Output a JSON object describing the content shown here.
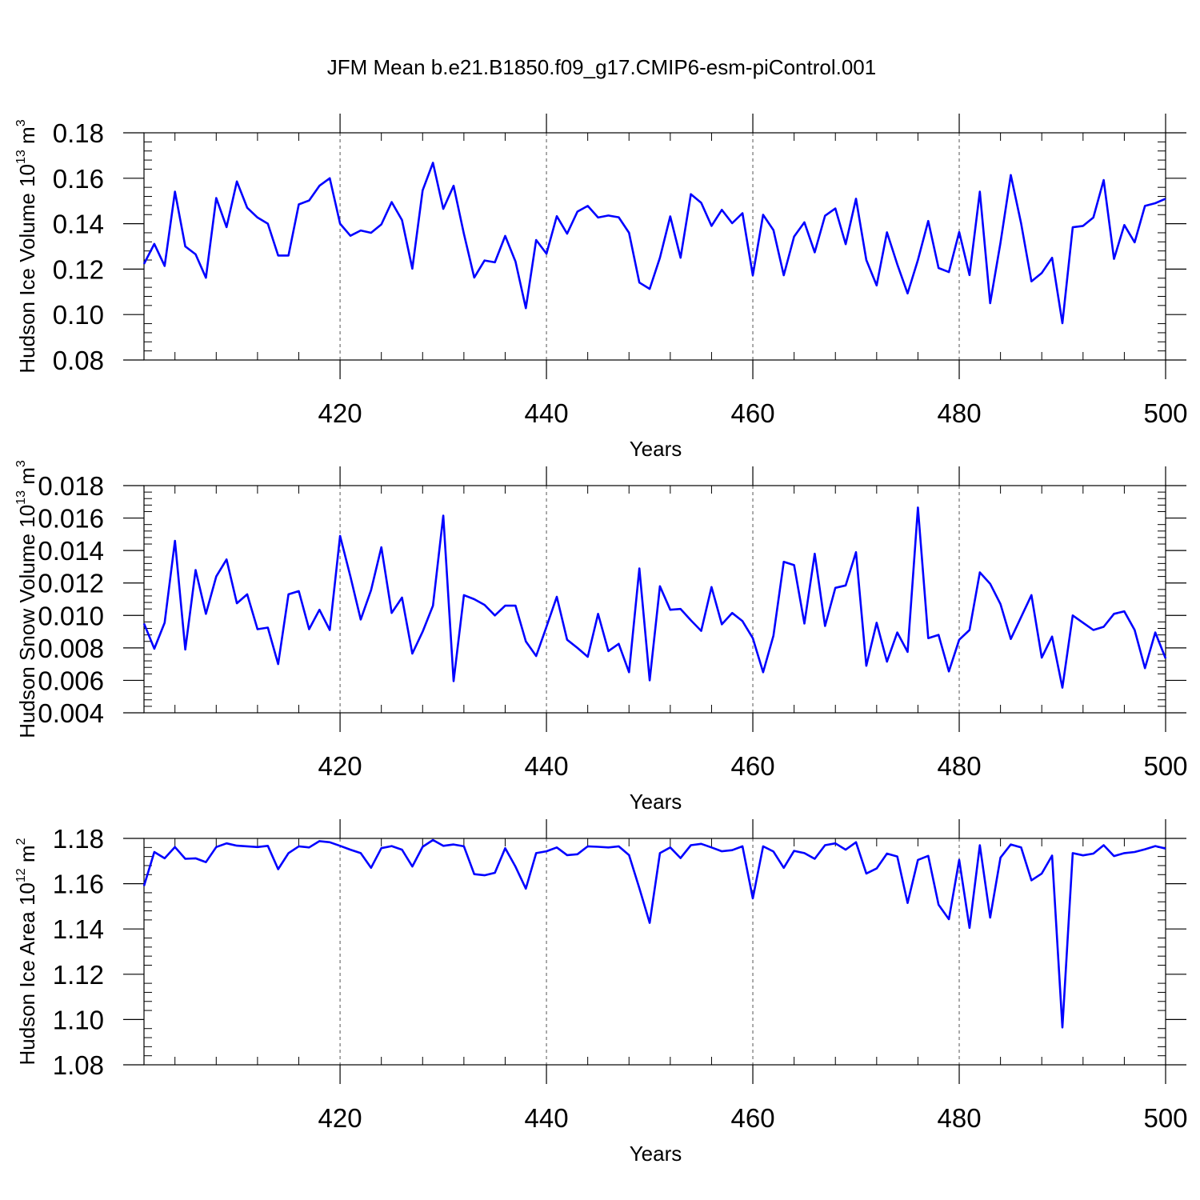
{
  "title": "JFM Mean b.e21.B1850.f09_g17.CMIP6-esm-piControl.001",
  "colors": {
    "line": "#0000ff",
    "axis": "#000000",
    "grid": "#555555",
    "background": "#ffffff"
  },
  "chart_data": [
    {
      "type": "line",
      "ylabel": {
        "text": "Hudson Ice Volume 10",
        "exponent": "13",
        "unit": " m",
        "unit_exponent": "3"
      },
      "xlabel": "Years",
      "xlim": [
        401,
        500
      ],
      "ylim": [
        0.08,
        0.18
      ],
      "xticks": [
        420,
        440,
        460,
        480,
        500
      ],
      "xtick_labels": [
        "420",
        "440",
        "460",
        "480",
        "500"
      ],
      "yticks": [
        0.08,
        0.1,
        0.12,
        0.14,
        0.16,
        0.18
      ],
      "ytick_labels": [
        "0.08",
        "0.10",
        "0.12",
        "0.14",
        "0.16",
        "0.18"
      ],
      "grid": "dashed vertical at major x ticks",
      "x": [
        401,
        402,
        403,
        404,
        405,
        406,
        407,
        408,
        409,
        410,
        411,
        412,
        413,
        414,
        415,
        416,
        417,
        418,
        419,
        420,
        421,
        422,
        423,
        424,
        425,
        426,
        427,
        428,
        429,
        430,
        431,
        432,
        433,
        434,
        435,
        436,
        437,
        438,
        439,
        440,
        441,
        442,
        443,
        444,
        445,
        446,
        447,
        448,
        449,
        450,
        451,
        452,
        453,
        454,
        455,
        456,
        457,
        458,
        459,
        460,
        461,
        462,
        463,
        464,
        465,
        466,
        467,
        468,
        469,
        470,
        471,
        472,
        473,
        474,
        475,
        476,
        477,
        478,
        479,
        480,
        481,
        482,
        483,
        484,
        485,
        486,
        487,
        488,
        489,
        490,
        491,
        492,
        493,
        494,
        495,
        496,
        497,
        498,
        499,
        500
      ],
      "values": [
        0.1223,
        0.1311,
        0.1214,
        0.1541,
        0.13,
        0.1265,
        0.1162,
        0.1513,
        0.1385,
        0.1586,
        0.147,
        0.1427,
        0.14,
        0.126,
        0.126,
        0.1485,
        0.1502,
        0.1567,
        0.16,
        0.14,
        0.1347,
        0.137,
        0.136,
        0.1397,
        0.1495,
        0.1416,
        0.1202,
        0.1547,
        0.1668,
        0.1465,
        0.1567,
        0.1355,
        0.1163,
        0.1238,
        0.123,
        0.1346,
        0.1233,
        0.1028,
        0.1328,
        0.1268,
        0.1433,
        0.1356,
        0.1453,
        0.1478,
        0.1427,
        0.1436,
        0.1428,
        0.136,
        0.1141,
        0.1113,
        0.125,
        0.1432,
        0.125,
        0.153,
        0.1492,
        0.139,
        0.1461,
        0.1402,
        0.1446,
        0.1173,
        0.1439,
        0.1372,
        0.1173,
        0.1343,
        0.1406,
        0.1274,
        0.1435,
        0.1467,
        0.131,
        0.151,
        0.124,
        0.1128,
        0.1362,
        0.1221,
        0.1093,
        0.124,
        0.1412,
        0.1205,
        0.1187,
        0.1363,
        0.1174,
        0.1541,
        0.105,
        0.1316,
        0.1614,
        0.1401,
        0.1146,
        0.1183,
        0.125,
        0.0962,
        0.1384,
        0.139,
        0.1427,
        0.1592,
        0.1245,
        0.1394,
        0.1318,
        0.1478,
        0.149,
        0.151
      ]
    },
    {
      "type": "line",
      "ylabel": {
        "text": "Hudson Snow Volume 10",
        "exponent": "13",
        "unit": " m",
        "unit_exponent": "3"
      },
      "xlabel": "Years",
      "xlim": [
        401,
        500
      ],
      "ylim": [
        0.004,
        0.018
      ],
      "xticks": [
        420,
        440,
        460,
        480,
        500
      ],
      "xtick_labels": [
        "420",
        "440",
        "460",
        "480",
        "500"
      ],
      "yticks": [
        0.004,
        0.006,
        0.008,
        0.01,
        0.012,
        0.014,
        0.016,
        0.018
      ],
      "ytick_labels": [
        "0.004",
        "0.006",
        "0.008",
        "0.010",
        "0.012",
        "0.014",
        "0.016",
        "0.018"
      ],
      "grid": "dashed vertical at major x ticks",
      "x": [
        401,
        402,
        403,
        404,
        405,
        406,
        407,
        408,
        409,
        410,
        411,
        412,
        413,
        414,
        415,
        416,
        417,
        418,
        419,
        420,
        421,
        422,
        423,
        424,
        425,
        426,
        427,
        428,
        429,
        430,
        431,
        432,
        433,
        434,
        435,
        436,
        437,
        438,
        439,
        440,
        441,
        442,
        443,
        444,
        445,
        446,
        447,
        448,
        449,
        450,
        451,
        452,
        453,
        454,
        455,
        456,
        457,
        458,
        459,
        460,
        461,
        462,
        463,
        464,
        465,
        466,
        467,
        468,
        469,
        470,
        471,
        472,
        473,
        474,
        475,
        476,
        477,
        478,
        479,
        480,
        481,
        482,
        483,
        484,
        485,
        486,
        487,
        488,
        489,
        490,
        491,
        492,
        493,
        494,
        495,
        496,
        497,
        498,
        499,
        500
      ],
      "values": [
        0.0095,
        0.00795,
        0.00955,
        0.0146,
        0.0079,
        0.0128,
        0.0101,
        0.0124,
        0.01345,
        0.01075,
        0.0113,
        0.00915,
        0.00925,
        0.007,
        0.0113,
        0.0115,
        0.00915,
        0.01035,
        0.0091,
        0.0149,
        0.0124,
        0.00975,
        0.01155,
        0.0142,
        0.01015,
        0.0111,
        0.00765,
        0.009,
        0.0106,
        0.01615,
        0.00595,
        0.01125,
        0.011,
        0.01065,
        0.01,
        0.0106,
        0.0106,
        0.0084,
        0.0075,
        0.0093,
        0.01115,
        0.0085,
        0.008,
        0.00745,
        0.0101,
        0.0078,
        0.00825,
        0.0065,
        0.0129,
        0.006,
        0.0118,
        0.01035,
        0.0104,
        0.0097,
        0.00905,
        0.01175,
        0.00945,
        0.01015,
        0.00965,
        0.0086,
        0.0065,
        0.00875,
        0.0133,
        0.0131,
        0.0095,
        0.0138,
        0.00935,
        0.0117,
        0.01185,
        0.0139,
        0.0069,
        0.00955,
        0.00715,
        0.00895,
        0.00775,
        0.01665,
        0.0086,
        0.0088,
        0.00655,
        0.0085,
        0.0091,
        0.01265,
        0.01195,
        0.0107,
        0.00855,
        0.0099,
        0.01125,
        0.0074,
        0.0087,
        0.00555,
        0.01,
        0.00955,
        0.0091,
        0.0093,
        0.0101,
        0.01025,
        0.0091,
        0.00675,
        0.00895,
        0.00735
      ]
    },
    {
      "type": "line",
      "ylabel": {
        "text": "Hudson Ice Area 10",
        "exponent": "12",
        "unit": " m",
        "unit_exponent": "2"
      },
      "xlabel": "Years",
      "xlim": [
        401,
        500
      ],
      "ylim": [
        1.08,
        1.18
      ],
      "xticks": [
        420,
        440,
        460,
        480,
        500
      ],
      "xtick_labels": [
        "420",
        "440",
        "460",
        "480",
        "500"
      ],
      "yticks": [
        1.08,
        1.1,
        1.12,
        1.14,
        1.16,
        1.18
      ],
      "ytick_labels": [
        "1.08",
        "1.10",
        "1.12",
        "1.14",
        "1.16",
        "1.18"
      ],
      "grid": "dashed vertical at major x ticks, solid horizontal reference at 1.18",
      "x": [
        401,
        402,
        403,
        404,
        405,
        406,
        407,
        408,
        409,
        410,
        411,
        412,
        413,
        414,
        415,
        416,
        417,
        418,
        419,
        420,
        421,
        422,
        423,
        424,
        425,
        426,
        427,
        428,
        429,
        430,
        431,
        432,
        433,
        434,
        435,
        436,
        437,
        438,
        439,
        440,
        441,
        442,
        443,
        444,
        445,
        446,
        447,
        448,
        449,
        450,
        451,
        452,
        453,
        454,
        455,
        456,
        457,
        458,
        459,
        460,
        461,
        462,
        463,
        464,
        465,
        466,
        467,
        468,
        469,
        470,
        471,
        472,
        473,
        474,
        475,
        476,
        477,
        478,
        479,
        480,
        481,
        482,
        483,
        484,
        485,
        486,
        487,
        488,
        489,
        490,
        491,
        492,
        493,
        494,
        495,
        496,
        497,
        498,
        499,
        500
      ],
      "values": [
        1.159,
        1.174,
        1.1712,
        1.1762,
        1.171,
        1.1712,
        1.1695,
        1.1762,
        1.1778,
        1.1768,
        1.1765,
        1.1762,
        1.1767,
        1.1664,
        1.1735,
        1.1765,
        1.176,
        1.1788,
        1.1783,
        1.1767,
        1.175,
        1.1735,
        1.167,
        1.1757,
        1.1766,
        1.175,
        1.1676,
        1.1763,
        1.1793,
        1.1767,
        1.1773,
        1.1765,
        1.1642,
        1.1637,
        1.1648,
        1.1757,
        1.1675,
        1.1578,
        1.1735,
        1.1743,
        1.176,
        1.1726,
        1.173,
        1.1765,
        1.1763,
        1.176,
        1.1765,
        1.1726,
        1.158,
        1.1427,
        1.1735,
        1.176,
        1.1713,
        1.177,
        1.1776,
        1.176,
        1.1743,
        1.1748,
        1.1765,
        1.1535,
        1.1765,
        1.1742,
        1.167,
        1.1745,
        1.1735,
        1.171,
        1.177,
        1.1778,
        1.175,
        1.1783,
        1.1645,
        1.1667,
        1.1733,
        1.172,
        1.1515,
        1.1705,
        1.1723,
        1.1507,
        1.1443,
        1.1705,
        1.1405,
        1.177,
        1.145,
        1.1715,
        1.1773,
        1.176,
        1.1615,
        1.1645,
        1.1724,
        1.0965,
        1.1735,
        1.1725,
        1.1733,
        1.177,
        1.1722,
        1.1735,
        1.174,
        1.1752,
        1.1766,
        1.1755
      ]
    }
  ]
}
